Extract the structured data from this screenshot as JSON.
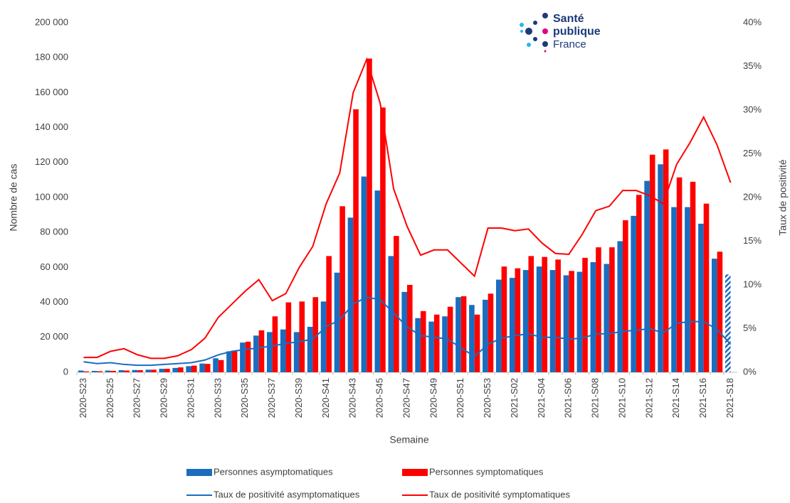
{
  "chart_data": {
    "type": "bar",
    "x_label": "Semaine",
    "y_label": "Nombre de cas",
    "y2_label": "Taux de positivité",
    "categories": [
      "2020-S23",
      null,
      "2020-S25",
      null,
      "2020-S27",
      null,
      "2020-S29",
      null,
      "2020-S31",
      null,
      "2020-S33",
      null,
      "2020-S35",
      null,
      "2020-S37",
      null,
      "2020-S39",
      null,
      "2020-S41",
      null,
      "2020-S43",
      null,
      "2020-S45",
      null,
      "2020-S47",
      null,
      "2020-S49",
      null,
      "2020-S51",
      null,
      "2020-S53",
      null,
      "2021-S02",
      null,
      "2021-S04",
      null,
      "2021-S06",
      null,
      "2021-S08",
      null,
      "2021-S10",
      null,
      "2021-S12",
      null,
      "2021-S14",
      null,
      "2021-S16",
      null,
      "2021-S18"
    ],
    "series": [
      {
        "name": "Personnes asymptomatiques",
        "type": "bar",
        "color": "#1a6dbf",
        "values": [
          1000,
          800,
          1000,
          1200,
          1300,
          1500,
          2000,
          2500,
          3500,
          5000,
          8000,
          12000,
          17000,
          21000,
          23000,
          24500,
          23000,
          26000,
          40500,
          57000,
          88500,
          112000,
          104000,
          66500,
          46000,
          31000,
          29000,
          32000,
          43000,
          38500,
          41500,
          53000,
          54000,
          58500,
          60500,
          58500,
          55500,
          57500,
          63000,
          62000,
          75000,
          89500,
          109500,
          119000,
          94500,
          94500,
          85000,
          65000,
          56000
        ]
      },
      {
        "name": "Personnes symptomatiques",
        "type": "bar",
        "color": "#ff0000",
        "values": [
          500,
          600,
          800,
          1000,
          1200,
          1500,
          2000,
          2800,
          3800,
          4800,
          7000,
          12000,
          17500,
          24000,
          32000,
          40000,
          40500,
          43000,
          66500,
          95000,
          150500,
          179500,
          151500,
          78000,
          50000,
          35000,
          33000,
          37500,
          43500,
          33000,
          45000,
          60500,
          59500,
          66500,
          66000,
          64500,
          58000,
          65500,
          71500,
          71500,
          87000,
          101500,
          124500,
          127500,
          111500,
          109000,
          96500,
          69000,
          null
        ]
      },
      {
        "name": "Taux de positivité asymptomatiques",
        "type": "line",
        "axis": "y2",
        "color": "#1a6dbf",
        "values": [
          1.2,
          1.0,
          1.1,
          0.9,
          0.8,
          0.8,
          0.9,
          1.0,
          1.1,
          1.4,
          2.0,
          2.4,
          2.6,
          2.8,
          3.0,
          3.3,
          3.5,
          3.8,
          5.2,
          6.0,
          7.8,
          8.6,
          8.3,
          6.8,
          5.2,
          4.2,
          4.0,
          3.8,
          2.8,
          1.8,
          3.2,
          3.9,
          4.2,
          4.4,
          4.0,
          4.0,
          3.8,
          3.9,
          4.4,
          4.4,
          4.7,
          4.8,
          5.0,
          4.5,
          5.6,
          5.8,
          5.8,
          4.9,
          3.2
        ]
      },
      {
        "name": "Taux de positivité symptomatiques",
        "type": "line",
        "axis": "y2",
        "color": "#ff0000",
        "values": [
          1.7,
          1.7,
          2.4,
          2.7,
          2.0,
          1.6,
          1.6,
          1.9,
          2.6,
          3.9,
          6.3,
          7.8,
          9.3,
          10.6,
          8.2,
          9.0,
          12.0,
          14.4,
          19.3,
          22.8,
          32.0,
          35.8,
          30.8,
          21.0,
          16.7,
          13.4,
          14.0,
          14.0,
          12.5,
          11.0,
          16.5,
          16.5,
          16.2,
          16.4,
          14.8,
          13.6,
          13.5,
          15.8,
          18.5,
          19.0,
          20.8,
          20.8,
          20.2,
          19.3,
          23.8,
          26.3,
          29.2,
          26.0,
          21.7
        ]
      }
    ],
    "ylim": [
      0,
      200000
    ],
    "yticks": [
      0,
      {
        "value": 20000,
        "label": "20 000"
      },
      {
        "value": 40000,
        "label": "40 000"
      },
      {
        "value": 60000,
        "label": "60 000"
      },
      {
        "value": 80000,
        "label": "80 000"
      },
      {
        "value": 100000,
        "label": "100 000"
      },
      {
        "value": 120000,
        "label": "120 000"
      },
      {
        "value": 140000,
        "label": "140 000"
      },
      {
        "value": 160000,
        "label": "160 000"
      },
      {
        "value": 180000,
        "label": "180 000"
      },
      {
        "value": 200000,
        "label": "200 000"
      }
    ],
    "y2lim": [
      0,
      40
    ],
    "y2ticks": [
      {
        "value": 0,
        "label": "0%"
      },
      {
        "value": 5,
        "label": "5%"
      },
      {
        "value": 10,
        "label": "10%"
      },
      {
        "value": 15,
        "label": "15%"
      },
      {
        "value": 20,
        "label": "20%"
      },
      {
        "value": 25,
        "label": "25%"
      },
      {
        "value": 30,
        "label": "30%"
      },
      {
        "value": 35,
        "label": "35%"
      },
      {
        "value": 40,
        "label": "40%"
      }
    ],
    "grid": false,
    "legend": "bottom"
  },
  "logo": {
    "line1": "Santé",
    "line2": "publique",
    "line3": "France"
  }
}
